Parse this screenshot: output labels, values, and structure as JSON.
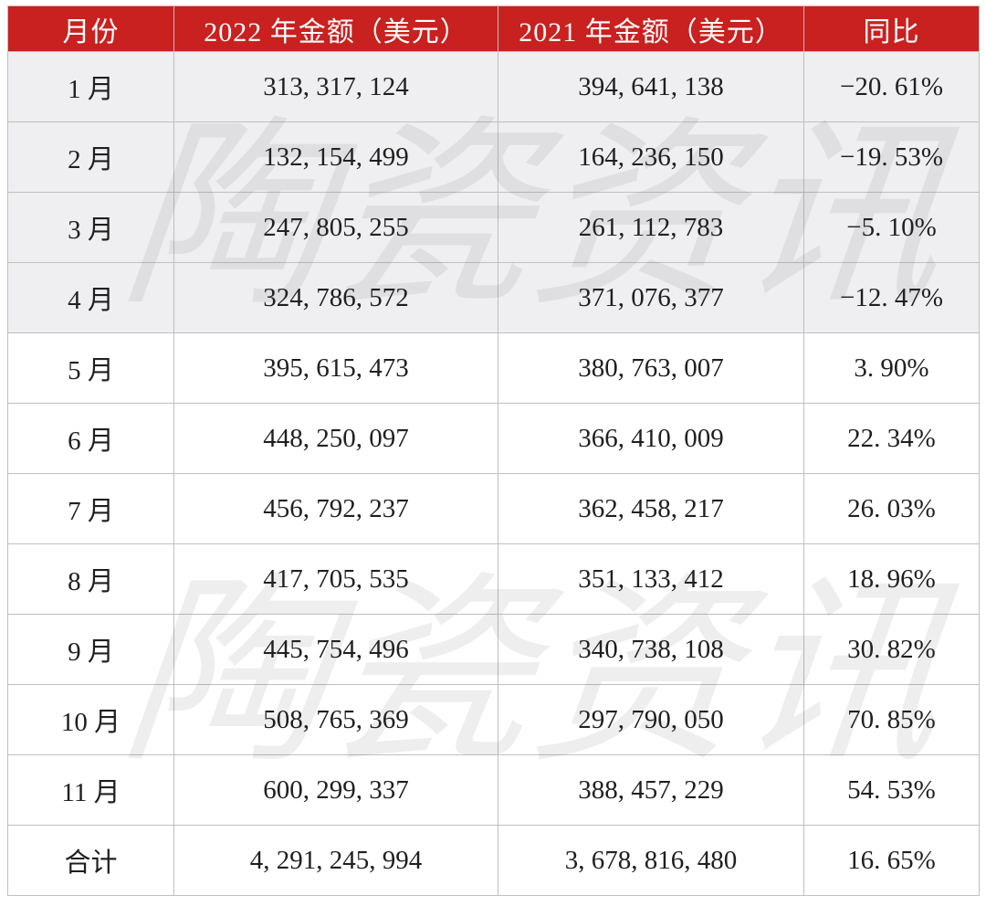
{
  "watermark": {
    "text": "陶瓷资讯"
  },
  "colors": {
    "header_bg": "#c9211f",
    "header_text": "#ffffff",
    "row_shaded_bg": "#efeef0",
    "row_bg": "#ffffff",
    "border": "#bfbfbf",
    "cell_text": "#1f1f1f"
  },
  "table": {
    "headers": [
      "月份",
      "2022 年金额（美元）",
      "2021 年金额（美元）",
      "同比"
    ],
    "rows": [
      {
        "month": "1 月",
        "amount_2022": "313, 317, 124",
        "amount_2021": "394, 641, 138",
        "yoy": "−20. 61%",
        "shaded": true
      },
      {
        "month": "2 月",
        "amount_2022": "132, 154, 499",
        "amount_2021": "164, 236, 150",
        "yoy": "−19. 53%",
        "shaded": true
      },
      {
        "month": "3 月",
        "amount_2022": "247, 805, 255",
        "amount_2021": "261, 112, 783",
        "yoy": "−5. 10%",
        "shaded": true
      },
      {
        "month": "4 月",
        "amount_2022": "324, 786, 572",
        "amount_2021": "371, 076, 377",
        "yoy": "−12. 47%",
        "shaded": true
      },
      {
        "month": "5 月",
        "amount_2022": "395, 615, 473",
        "amount_2021": "380, 763, 007",
        "yoy": "3. 90%",
        "shaded": false
      },
      {
        "month": "6 月",
        "amount_2022": "448, 250, 097",
        "amount_2021": "366, 410, 009",
        "yoy": "22. 34%",
        "shaded": false
      },
      {
        "month": "7 月",
        "amount_2022": "456, 792, 237",
        "amount_2021": "362, 458, 217",
        "yoy": "26. 03%",
        "shaded": false
      },
      {
        "month": "8 月",
        "amount_2022": "417, 705, 535",
        "amount_2021": "351, 133, 412",
        "yoy": "18. 96%",
        "shaded": false
      },
      {
        "month": "9 月",
        "amount_2022": "445, 754, 496",
        "amount_2021": "340, 738, 108",
        "yoy": "30. 82%",
        "shaded": false
      },
      {
        "month": "10 月",
        "amount_2022": "508, 765, 369",
        "amount_2021": "297, 790, 050",
        "yoy": "70. 85%",
        "shaded": false
      },
      {
        "month": "11 月",
        "amount_2022": "600, 299, 337",
        "amount_2021": "388, 457, 229",
        "yoy": "54. 53%",
        "shaded": false
      },
      {
        "month": "合计",
        "amount_2022": "4, 291, 245, 994",
        "amount_2021": "3, 678, 816, 480",
        "yoy": "16. 65%",
        "shaded": false
      }
    ]
  },
  "chart_data": {
    "type": "table",
    "columns": [
      "月份",
      "2022 年金额（美元）",
      "2021 年金额（美元）",
      "同比"
    ],
    "rows": [
      [
        "1 月",
        313317124,
        394641138,
        -20.61
      ],
      [
        "2 月",
        132154499,
        164236150,
        -19.53
      ],
      [
        "3 月",
        247805255,
        261112783,
        -5.1
      ],
      [
        "4 月",
        324786572,
        371076377,
        -12.47
      ],
      [
        "5 月",
        395615473,
        380763007,
        3.9
      ],
      [
        "6 月",
        448250097,
        366410009,
        22.34
      ],
      [
        "7 月",
        456792237,
        362458217,
        26.03
      ],
      [
        "8 月",
        417705535,
        351133412,
        18.96
      ],
      [
        "9 月",
        445754496,
        340738108,
        30.82
      ],
      [
        "10 月",
        508765369,
        297790050,
        70.85
      ],
      [
        "11 月",
        600299337,
        388457229,
        54.53
      ],
      [
        "合计",
        4291245994,
        3678816480,
        16.65
      ]
    ],
    "notes": "yoy column in percent; rows with negative yoy have shaded gray background; watermark 陶瓷资讯 overlays table twice"
  }
}
